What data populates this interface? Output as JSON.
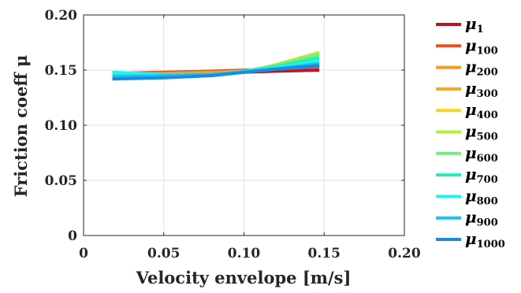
{
  "chart_data": {
    "type": "line",
    "title": "",
    "xlabel": "Velocity envelope [m/s]",
    "ylabel": "Friction coeff μ",
    "xlim": [
      0,
      0.2
    ],
    "ylim": [
      0,
      0.2
    ],
    "xticks": [
      0,
      0.05,
      0.1,
      0.15,
      0.2
    ],
    "xtick_labels": [
      "0",
      "0.05",
      "0.10",
      "0.15",
      "0.20"
    ],
    "yticks": [
      0,
      0.05,
      0.1,
      0.15,
      0.2
    ],
    "ytick_labels": [
      "0",
      "0.05",
      "0.10",
      "0.15",
      "0.20"
    ],
    "grid": true,
    "legend_position": "outside-right",
    "x": [
      0.018,
      0.05,
      0.08,
      0.1,
      0.12,
      0.147
    ],
    "series": [
      {
        "name": "μ",
        "sub": "1",
        "color": "#b2182b",
        "values": [
          0.146,
          0.147,
          0.147,
          0.148,
          0.149,
          0.15
        ]
      },
      {
        "name": "μ",
        "sub": "100",
        "color": "#e8501e",
        "values": [
          0.147,
          0.148,
          0.149,
          0.15,
          0.151,
          0.153
        ]
      },
      {
        "name": "μ",
        "sub": "200",
        "color": "#f39a1f",
        "values": [
          0.146,
          0.147,
          0.148,
          0.149,
          0.151,
          0.154
        ]
      },
      {
        "name": "μ",
        "sub": "300",
        "color": "#f6a81c",
        "values": [
          0.145,
          0.146,
          0.147,
          0.149,
          0.151,
          0.155
        ]
      },
      {
        "name": "μ",
        "sub": "400",
        "color": "#fbd21f",
        "values": [
          0.144,
          0.145,
          0.146,
          0.149,
          0.153,
          0.16
        ]
      },
      {
        "name": "μ",
        "sub": "500",
        "color": "#b5ee3c",
        "values": [
          0.142,
          0.143,
          0.145,
          0.148,
          0.155,
          0.166
        ]
      },
      {
        "name": "μ",
        "sub": "600",
        "color": "#6ff07f",
        "values": [
          0.143,
          0.144,
          0.146,
          0.149,
          0.154,
          0.164
        ]
      },
      {
        "name": "μ",
        "sub": "700",
        "color": "#21efbd",
        "values": [
          0.145,
          0.145,
          0.146,
          0.149,
          0.153,
          0.161
        ]
      },
      {
        "name": "μ",
        "sub": "800",
        "color": "#24f3f3",
        "values": [
          0.148,
          0.146,
          0.146,
          0.148,
          0.152,
          0.158
        ]
      },
      {
        "name": "μ",
        "sub": "900",
        "color": "#17c2ee",
        "values": [
          0.144,
          0.145,
          0.146,
          0.148,
          0.151,
          0.156
        ]
      },
      {
        "name": "μ",
        "sub": "1000",
        "color": "#1e88e5",
        "values": [
          0.142,
          0.143,
          0.145,
          0.148,
          0.151,
          0.154
        ]
      }
    ]
  }
}
